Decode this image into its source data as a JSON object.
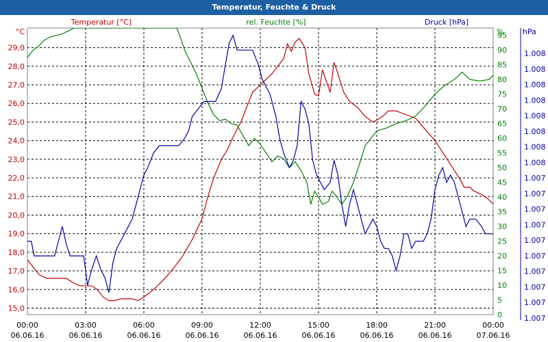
{
  "window_title": "Temperatur, Feuchte & Druck",
  "colors": {
    "temperature": "#c00000",
    "humidity": "#008000",
    "pressure": "#0000a0",
    "titlebar": "#1d5fa3",
    "grid": "#000000"
  },
  "chart_data": {
    "type": "line",
    "title": "Temperatur, Feuchte & Druck",
    "grid": true,
    "x_ticks": [
      {
        "time": "00:00",
        "date": "06.06.16"
      },
      {
        "time": "03:00",
        "date": "06.06.16"
      },
      {
        "time": "06:00",
        "date": "06.06.16"
      },
      {
        "time": "09:00",
        "date": "06.06.16"
      },
      {
        "time": "12:00",
        "date": "06.06.16"
      },
      {
        "time": "15:00",
        "date": "06.06.16"
      },
      {
        "time": "18:00",
        "date": "06.06.16"
      },
      {
        "time": "21:00",
        "date": "06.06.16"
      },
      {
        "time": "00:00",
        "date": "07.06.16"
      }
    ],
    "axes": {
      "left": {
        "unit": "°C",
        "ylim": [
          14.65,
          30.05
        ],
        "ticks": [
          "15,0",
          "16,0",
          "17,0",
          "18,0",
          "19,0",
          "20,0",
          "21,0",
          "22,0",
          "23,0",
          "24,0",
          "25,0",
          "26,0",
          "27,0",
          "28,0",
          "29,0"
        ]
      },
      "right": {
        "unit": "%",
        "ylim": [
          0,
          97.5
        ],
        "ticks": [
          "0",
          "5",
          "10",
          "15",
          "20",
          "25",
          "30",
          "35",
          "40",
          "45",
          "50",
          "55",
          "60",
          "65",
          "70",
          "75",
          "80",
          "85",
          "90",
          "95"
        ]
      },
      "pressure": {
        "unit": "hPa",
        "ticks": [
          "1.007",
          "1.007",
          "1.007",
          "1.007",
          "1.007",
          "1.007",
          "1.007",
          "1.007",
          "1.007",
          "1.007",
          "1.008",
          "1.008",
          "1.008",
          "1.008",
          "1.008",
          "1.008",
          "1.008",
          "1.008"
        ]
      }
    },
    "series": [
      {
        "name": "Temperatur [°C]",
        "axis": "left",
        "color": "#c00000",
        "points": [
          [
            0,
            17.6
          ],
          [
            0.3,
            17.2
          ],
          [
            0.6,
            16.8
          ],
          [
            1,
            16.6
          ],
          [
            1.5,
            16.6
          ],
          [
            2,
            16.6
          ],
          [
            2.3,
            16.4
          ],
          [
            2.7,
            16.2
          ],
          [
            3,
            16.2
          ],
          [
            3.3,
            16.2
          ],
          [
            3.6,
            16.0
          ],
          [
            3.9,
            15.6
          ],
          [
            4.2,
            15.4
          ],
          [
            4.5,
            15.4
          ],
          [
            4.8,
            15.5
          ],
          [
            5.1,
            15.5
          ],
          [
            5.4,
            15.5
          ],
          [
            5.7,
            15.4
          ],
          [
            6,
            15.6
          ],
          [
            6.5,
            16.0
          ],
          [
            7,
            16.5
          ],
          [
            7.5,
            17.1
          ],
          [
            8,
            17.8
          ],
          [
            8.5,
            18.7
          ],
          [
            9,
            19.8
          ],
          [
            9.3,
            21.0
          ],
          [
            9.6,
            22.0
          ],
          [
            10,
            23.0
          ],
          [
            10.3,
            23.5
          ],
          [
            10.6,
            24.2
          ],
          [
            11,
            25.0
          ],
          [
            11.3,
            25.8
          ],
          [
            11.6,
            26.6
          ],
          [
            12,
            27.0
          ],
          [
            12.3,
            27.3
          ],
          [
            12.6,
            27.6
          ],
          [
            12.9,
            28.0
          ],
          [
            13.2,
            28.4
          ],
          [
            13.4,
            29.2
          ],
          [
            13.6,
            28.8
          ],
          [
            13.8,
            29.3
          ],
          [
            14,
            29.5
          ],
          [
            14.3,
            29.0
          ],
          [
            14.5,
            27.6
          ],
          [
            14.8,
            26.5
          ],
          [
            15,
            26.4
          ],
          [
            15.2,
            27.8
          ],
          [
            15.4,
            27.2
          ],
          [
            15.6,
            26.6
          ],
          [
            15.8,
            28.2
          ],
          [
            16,
            27.6
          ],
          [
            16.3,
            26.6
          ],
          [
            16.6,
            26.1
          ],
          [
            17,
            25.8
          ],
          [
            17.4,
            25.3
          ],
          [
            17.8,
            25.0
          ],
          [
            18,
            25.1
          ],
          [
            18.3,
            25.3
          ],
          [
            18.6,
            25.6
          ],
          [
            19,
            25.6
          ],
          [
            19.5,
            25.4
          ],
          [
            20,
            25.2
          ],
          [
            20.5,
            24.6
          ],
          [
            21,
            24.0
          ],
          [
            21.5,
            23.2
          ],
          [
            22,
            22.4
          ],
          [
            22.3,
            21.9
          ],
          [
            22.5,
            21.5
          ],
          [
            22.8,
            21.5
          ],
          [
            23,
            21.3
          ],
          [
            23.4,
            21.1
          ],
          [
            23.7,
            20.9
          ],
          [
            24,
            20.6
          ]
        ]
      },
      {
        "name": "rel. Feuchte [%]",
        "axis": "right",
        "color": "#008000",
        "points": [
          [
            0,
            87.5
          ],
          [
            0.3,
            90.0
          ],
          [
            0.6,
            91.5
          ],
          [
            0.9,
            93.5
          ],
          [
            1.2,
            94.5
          ],
          [
            1.5,
            95.0
          ],
          [
            1.8,
            95.5
          ],
          [
            2.1,
            96.5
          ],
          [
            2.4,
            97.5
          ],
          [
            7.7,
            97.5
          ],
          [
            7.9,
            94.0
          ],
          [
            8.1,
            90.0
          ],
          [
            8.4,
            86.0
          ],
          [
            8.7,
            82.0
          ],
          [
            9,
            77.0
          ],
          [
            9.3,
            72.0
          ],
          [
            9.6,
            68.0
          ],
          [
            9.9,
            66.0
          ],
          [
            10.2,
            66.5
          ],
          [
            10.5,
            65.0
          ],
          [
            10.8,
            64.5
          ],
          [
            11.1,
            61.0
          ],
          [
            11.4,
            57.5
          ],
          [
            11.7,
            60.0
          ],
          [
            12,
            58.0
          ],
          [
            12.3,
            55.0
          ],
          [
            12.6,
            52.0
          ],
          [
            12.9,
            54.0
          ],
          [
            13.2,
            53.0
          ],
          [
            13.5,
            50.0
          ],
          [
            13.8,
            52.0
          ],
          [
            14.1,
            49.0
          ],
          [
            14.4,
            45.0
          ],
          [
            14.6,
            37.5
          ],
          [
            14.8,
            42.0
          ],
          [
            15,
            40.0
          ],
          [
            15.2,
            37.5
          ],
          [
            15.5,
            38.5
          ],
          [
            15.7,
            42.0
          ],
          [
            15.9,
            40.5
          ],
          [
            16.2,
            37.5
          ],
          [
            16.5,
            40.5
          ],
          [
            16.8,
            45.0
          ],
          [
            17.1,
            51.0
          ],
          [
            17.4,
            57.5
          ],
          [
            17.7,
            60.0
          ],
          [
            18,
            62.5
          ],
          [
            18.5,
            63.5
          ],
          [
            19,
            65.0
          ],
          [
            19.5,
            66.0
          ],
          [
            20,
            67.5
          ],
          [
            20.5,
            71.0
          ],
          [
            21,
            75.0
          ],
          [
            21.5,
            78.0
          ],
          [
            22,
            80.0
          ],
          [
            22.4,
            82.5
          ],
          [
            22.8,
            80.0
          ],
          [
            23.3,
            79.5
          ],
          [
            23.8,
            80.0
          ],
          [
            24,
            81.5
          ]
        ]
      },
      {
        "name": "Druck [hPa]",
        "axis": "right",
        "color": "#0000a0",
        "points": [
          [
            0,
            25.0
          ],
          [
            0.2,
            25.0
          ],
          [
            0.35,
            20.0
          ],
          [
            0.6,
            20.0
          ],
          [
            0.8,
            20.0
          ],
          [
            1.4,
            20.0
          ],
          [
            1.6,
            25.0
          ],
          [
            1.8,
            30.0
          ],
          [
            2,
            24.0
          ],
          [
            2.2,
            20.0
          ],
          [
            2.4,
            20.0
          ],
          [
            2.9,
            20.0
          ],
          [
            3.1,
            10.0
          ],
          [
            3.3,
            15.0
          ],
          [
            3.55,
            20.0
          ],
          [
            3.8,
            15.0
          ],
          [
            4,
            12.5
          ],
          [
            4.2,
            7.5
          ],
          [
            4.4,
            17.5
          ],
          [
            4.6,
            22.5
          ],
          [
            4.8,
            25.0
          ],
          [
            5,
            27.5
          ],
          [
            5.2,
            30.0
          ],
          [
            5.4,
            32.5
          ],
          [
            5.6,
            37.5
          ],
          [
            5.8,
            42.5
          ],
          [
            6,
            47.5
          ],
          [
            6.2,
            50.0
          ],
          [
            6.5,
            55.0
          ],
          [
            6.8,
            57.5
          ],
          [
            7.1,
            57.5
          ],
          [
            7.5,
            57.5
          ],
          [
            7.8,
            57.5
          ],
          [
            8.1,
            60.0
          ],
          [
            8.3,
            62.5
          ],
          [
            8.5,
            67.5
          ],
          [
            8.8,
            70.0
          ],
          [
            9.1,
            72.5
          ],
          [
            9.4,
            72.5
          ],
          [
            9.7,
            72.5
          ],
          [
            10,
            77.0
          ],
          [
            10.2,
            85.0
          ],
          [
            10.4,
            92.5
          ],
          [
            10.6,
            95.0
          ],
          [
            10.8,
            90.0
          ],
          [
            11,
            90.0
          ],
          [
            11.3,
            90.0
          ],
          [
            11.6,
            90.0
          ],
          [
            11.9,
            85.0
          ],
          [
            12.1,
            80.0
          ],
          [
            12.3,
            77.5
          ],
          [
            12.5,
            75.0
          ],
          [
            12.8,
            67.5
          ],
          [
            13,
            60.0
          ],
          [
            13.2,
            55.0
          ],
          [
            13.5,
            50.0
          ],
          [
            13.7,
            52.5
          ],
          [
            13.9,
            57.5
          ],
          [
            14.1,
            72.5
          ],
          [
            14.3,
            70.0
          ],
          [
            14.5,
            65.0
          ],
          [
            14.7,
            52.5
          ],
          [
            14.9,
            47.5
          ],
          [
            15.1,
            45.0
          ],
          [
            15.3,
            42.5
          ],
          [
            15.6,
            45.0
          ],
          [
            15.8,
            52.5
          ],
          [
            16,
            47.5
          ],
          [
            16.2,
            37.5
          ],
          [
            16.4,
            30.0
          ],
          [
            16.6,
            37.5
          ],
          [
            16.8,
            42.5
          ],
          [
            17,
            37.5
          ],
          [
            17.2,
            32.5
          ],
          [
            17.4,
            27.5
          ],
          [
            17.6,
            30.0
          ],
          [
            17.8,
            32.5
          ],
          [
            18,
            30.0
          ],
          [
            18.2,
            25.0
          ],
          [
            18.4,
            22.5
          ],
          [
            18.6,
            22.5
          ],
          [
            18.8,
            20.0
          ],
          [
            19,
            15.0
          ],
          [
            19.2,
            20.0
          ],
          [
            19.4,
            27.5
          ],
          [
            19.6,
            27.5
          ],
          [
            19.8,
            22.5
          ],
          [
            20,
            25.0
          ],
          [
            20.4,
            25.0
          ],
          [
            20.6,
            27.5
          ],
          [
            20.8,
            32.5
          ],
          [
            21,
            42.5
          ],
          [
            21.2,
            47.5
          ],
          [
            21.4,
            50.0
          ],
          [
            21.6,
            45.0
          ],
          [
            21.8,
            47.5
          ],
          [
            22,
            45.0
          ],
          [
            22.2,
            40.0
          ],
          [
            22.4,
            35.0
          ],
          [
            22.6,
            30.0
          ],
          [
            22.8,
            32.5
          ],
          [
            23.1,
            32.5
          ],
          [
            23.4,
            30.0
          ],
          [
            23.6,
            27.5
          ],
          [
            24,
            27.5
          ]
        ]
      }
    ]
  }
}
